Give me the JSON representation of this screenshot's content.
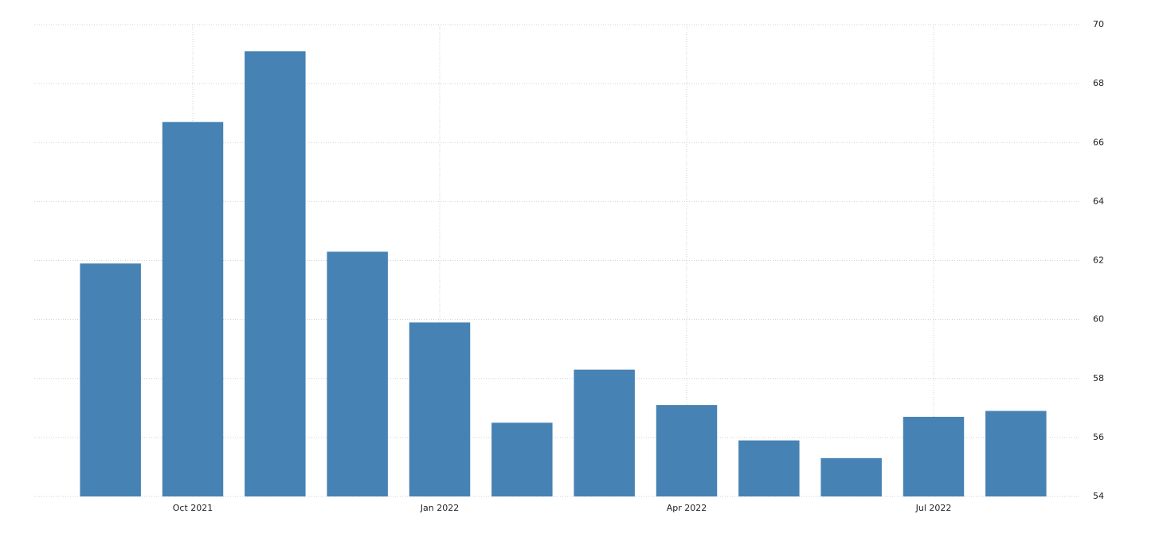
{
  "chart_data": {
    "type": "bar",
    "categories": [
      null,
      "Oct 2021",
      null,
      null,
      "Jan 2022",
      null,
      null,
      "Apr 2022",
      null,
      null,
      "Jul 2022",
      null
    ],
    "values": [
      61.9,
      66.7,
      69.1,
      62.3,
      59.9,
      56.5,
      58.3,
      57.1,
      55.9,
      55.3,
      56.7,
      56.9
    ],
    "color": "#4682b4",
    "ylim": [
      54,
      70
    ],
    "yticks": [
      54,
      56,
      58,
      60,
      62,
      64,
      66,
      68,
      70
    ],
    "grid": true
  }
}
